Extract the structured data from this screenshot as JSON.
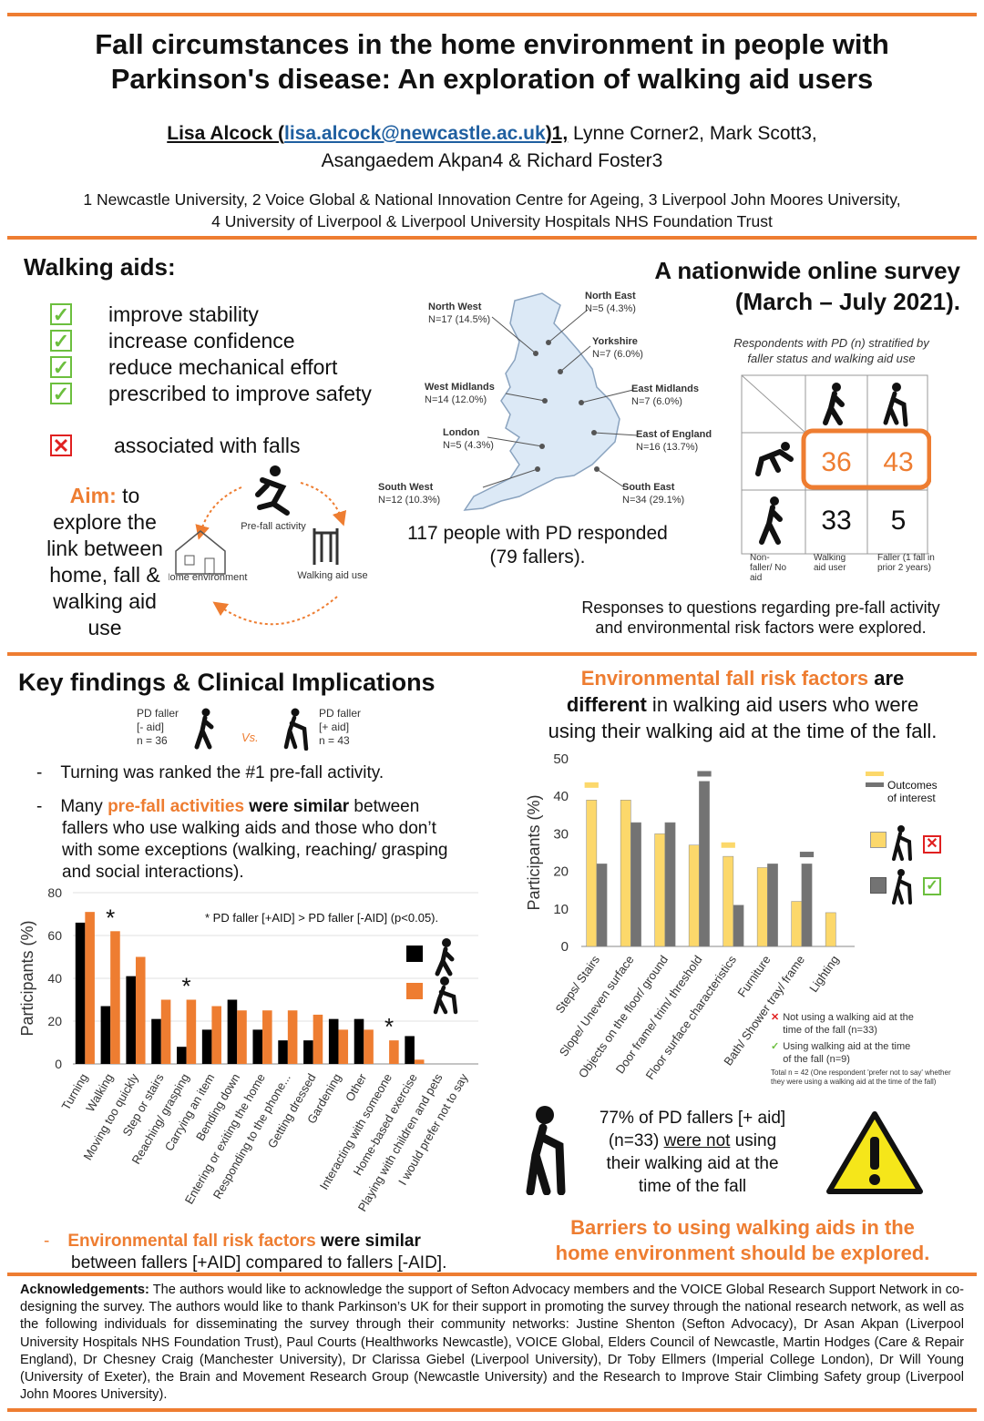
{
  "header": {
    "title_line1": "Fall circumstances in the home environment in people with",
    "title_line2": "Parkinson's disease: An exploration of walking aid users",
    "authors_line1_lead": "Lisa Alcock (",
    "authors_email": "lisa.alcock@newcastle.ac.uk",
    "authors_line1_tail": ")1,",
    "authors_line1_rest": " Lynne Corner2, Mark Scott3,",
    "authors_line2": "Asangaedem Akpan4 & Richard Foster3",
    "affil_line1": "1 Newcastle University, 2 Voice Global & National Innovation Centre for Ageing, 3 Liverpool John Moores University,",
    "affil_line2": "4 University of Liverpool & Liverpool University Hospitals NHS Foundation Trust"
  },
  "walking_aids": {
    "heading": "Walking aids:",
    "benefits": [
      "improve stability",
      "increase confidence",
      "reduce mechanical effort",
      "prescribed to improve safety"
    ],
    "risk": "associated with falls",
    "aim_label": "Aim:",
    "aim_text_1": " to",
    "aim_text_2": "explore the",
    "aim_text_3": "link between",
    "aim_text_4": "home, fall &",
    "aim_text_5": "walking aid",
    "aim_text_6": "use",
    "cycle_prefall": "Pre-fall activity",
    "cycle_home": "Home environment",
    "cycle_aid": "Walking aid use"
  },
  "survey": {
    "heading_1": "A nationwide online survey",
    "heading_2": "(March – July 2021).",
    "regions": [
      {
        "name": "North West",
        "n": "N=17 (14.5%)"
      },
      {
        "name": "North East",
        "n": "N=5 (4.3%)"
      },
      {
        "name": "Yorkshire",
        "n": "N=7 (6.0%)"
      },
      {
        "name": "West Midlands",
        "n": "N=14 (12.0%)"
      },
      {
        "name": "East Midlands",
        "n": "N=7 (6.0%)"
      },
      {
        "name": "London",
        "n": "N=5 (4.3%)"
      },
      {
        "name": "East of England",
        "n": "N=16 (13.7%)"
      },
      {
        "name": "South West",
        "n": "N=12 (10.3%)"
      },
      {
        "name": "South East",
        "n": "N=34 (29.1%)"
      }
    ],
    "responded_1": "117 people with PD responded",
    "responded_2": "(79 fallers).",
    "table_caption_1": "Respondents with PD (n) stratified by",
    "table_caption_2": "faller status and walking aid use",
    "cell_faller_noaid": "36",
    "cell_faller_aid": "43",
    "cell_nonfaller_noaid": "33",
    "cell_nonfaller_aid": "5",
    "legend_nonfaller": "Non-faller/ No aid",
    "legend_aid": "Walking aid user",
    "legend_faller": "Faller (1 fall in prior 2 years)",
    "responses_1": "Responses to questions regarding pre-fall activity",
    "responses_2": "and environmental risk factors were explored."
  },
  "key_findings": {
    "heading": "Key findings & Clinical Implications",
    "faller_noaid_label": "PD faller",
    "faller_noaid_sub": "[- aid]",
    "faller_noaid_n": "n = 36",
    "vs": "Vs.",
    "faller_aid_label": "PD faller",
    "faller_aid_sub": "[+ aid]",
    "faller_aid_n": "n = 43",
    "bullet1": "Turning was ranked the #1 pre-fall activity.",
    "bullet2_a": "Many ",
    "bullet2_b": "pre-fall activities",
    "bullet2_c": " were similar",
    "bullet2_d": " between",
    "bullet2_l2": "fallers who use walking aids and those who don’t",
    "bullet2_l3": "with some exceptions (walking, reaching/ grasping",
    "bullet2_l4": "and social interactions).",
    "sig_note": "* PD faller [+AID] > PD faller [-AID] (p<0.05).",
    "bullet3_a": "Environmental fall risk factors",
    "bullet3_b": " were similar",
    "bullet3_l2": "between fallers [+AID] compared to fallers [-AID]."
  },
  "env_section": {
    "head_a": "Environmental fall risk factors",
    "head_b": " are",
    "head_l2_a": "different",
    "head_l2_b": " in walking aid users who were",
    "head_l3": "using their walking aid at the time of the fall.",
    "outcomes_label_1": "Outcomes",
    "outcomes_label_2": "of interest",
    "legend_not_using_1": "Not using a walking aid at the",
    "legend_not_using_2": "time of the fall (n=33)",
    "legend_using_1": "Using walking aid at the time",
    "legend_using_2": "of the fall (n=9)",
    "total_note_1": "Total n = 42 (One respondent 'prefer not to say' whether",
    "total_note_2": "they were using a walking aid at the time of the fall)",
    "stat_1": "77% of PD fallers [+ aid]",
    "stat_2_a": "(n=33) ",
    "stat_2_b": "were not",
    "stat_2_c": " using",
    "stat_3": "their walking aid at the",
    "stat_4": "time of the fall",
    "conclusion_1": "Barriers to using walking aids in the",
    "conclusion_2": "home environment should be explored."
  },
  "acknowledgements": {
    "label": "Acknowledgements:",
    "text": " The authors would like to acknowledge the support of Sefton Advocacy members and the VOICE Global Research Support Network in co-designing the survey. The authors would like to thank Parkinson’s UK for their support in promoting the survey through the national research network, as well as the following individuals for disseminating the survey through their community networks: Justine Shenton (Sefton Advocacy), Dr Asan Akpan (Liverpool University Hospitals NHS Foundation Trust), Paul Courts (Healthworks Newcastle), VOICE Global, Elders Council of Newcastle, Martin Hodges (Care & Repair England), Dr Chesney Craig (Manchester University), Dr Clarissa Giebel (Liverpool University), Dr Toby Ellmers (Imperial College London), Dr Will Young (University of Exeter), the Brain and Movement Research Group (Newcastle University) and the Research to Improve Stair Climbing Safety group (Liverpool John Moores University)."
  },
  "colors": {
    "accent": "#ee7d31",
    "black_bar": "#000000",
    "yellow_bar": "#fcd86b",
    "grey_bar": "#737373",
    "map_fill": "#dce9f6"
  },
  "chart_data": [
    {
      "type": "bar",
      "ylabel": "Participants (%)",
      "ylim": [
        0,
        80
      ],
      "yticks": [
        "0",
        "20",
        "40",
        "60",
        "80"
      ],
      "categories": [
        "Turning",
        "Walking",
        "Moving too quickly",
        "Step or stairs",
        "Reaching/ grasping",
        "Carrying an item",
        "Bending down",
        "Entering or exiting the home",
        "Responding to the phone...",
        "Getting dressed",
        "Gardening",
        "Other",
        "Interacting with someone",
        "Home-based exercise",
        "Playing with children and pets",
        "I would prefer not to say"
      ],
      "series": [
        {
          "values": [
            66,
            27,
            41,
            21,
            8,
            16,
            30,
            16,
            11,
            11,
            21,
            21,
            0,
            13,
            0,
            0
          ]
        },
        {
          "values": [
            71,
            62,
            50,
            30,
            30,
            27,
            25,
            25,
            25,
            23,
            16,
            16,
            11,
            2,
            0,
            0
          ]
        }
      ],
      "significant": [
        "Walking",
        "Reaching/ grasping",
        "Interacting with someone"
      ],
      "sig_marker": "*"
    },
    {
      "type": "bar",
      "ylabel": "Participants (%)",
      "ylim": [
        0,
        50
      ],
      "yticks": [
        "0",
        "10",
        "20",
        "30",
        "40",
        "50"
      ],
      "categories": [
        "Steps/ Stairs",
        "Slope/ Uneven surface",
        "Objects on the floor/ ground",
        "Door frame/ trim/ threshold",
        "Floor surface characteristics",
        "Furniture",
        "Bath/ Shower tray/ frame",
        "Lighting"
      ],
      "series": [
        {
          "values": [
            39,
            39,
            30,
            27,
            24,
            21,
            12,
            9
          ]
        },
        {
          "values": [
            22,
            33,
            33,
            44,
            11,
            22,
            22,
            0
          ]
        }
      ],
      "outcome_markers": [
        {
          "category": "Steps/ Stairs",
          "value": 43,
          "color": "yellow"
        },
        {
          "category": "Door frame/ trim/ threshold",
          "value": 46,
          "color": "grey"
        },
        {
          "category": "Floor surface characteristics",
          "value": 27,
          "color": "yellow"
        },
        {
          "category": "Bath/ Shower tray/ frame",
          "value": 24.5,
          "color": "grey"
        }
      ]
    }
  ]
}
